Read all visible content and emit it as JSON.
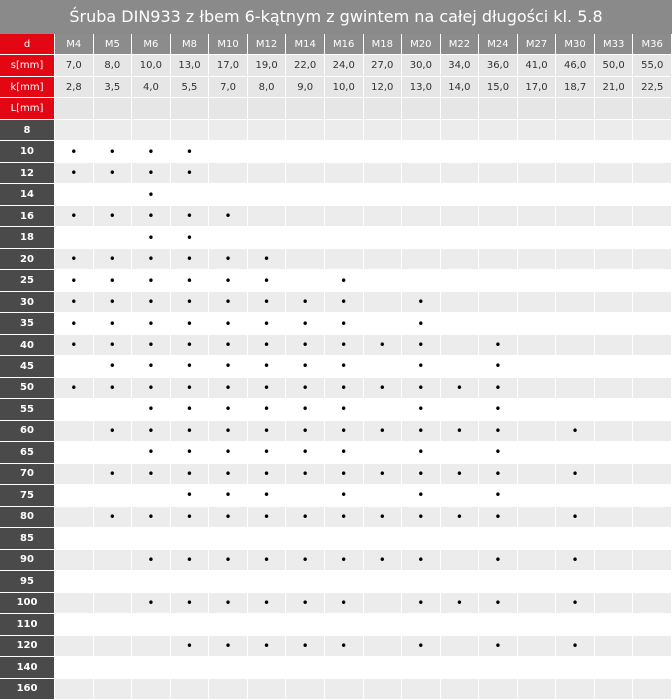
{
  "title": "Śruba DIN933 z łbem 6-kątnym z gwintem na całej długości kl. 5.8",
  "header": {
    "label": "d",
    "columns": [
      "M4",
      "M5",
      "M6",
      "M8",
      "M10",
      "M12",
      "M14",
      "M16",
      "M18",
      "M20",
      "M22",
      "M24",
      "M27",
      "M30",
      "M33",
      "M36"
    ]
  },
  "dimensions": [
    {
      "label": "s[mm]",
      "cells": [
        "7,0",
        "8,0",
        "10,0",
        "13,0",
        "17,0",
        "19,0",
        "22,0",
        "24,0",
        "27,0",
        "30,0",
        "34,0",
        "36,0",
        "41,0",
        "46,0",
        "50,0",
        "55,0"
      ]
    },
    {
      "label": "k[mm]",
      "cells": [
        "2,8",
        "3,5",
        "4,0",
        "5,5",
        "7,0",
        "8,0",
        "9,0",
        "10,0",
        "12,0",
        "13,0",
        "14,0",
        "15,0",
        "17,0",
        "18,7",
        "21,0",
        "22,5"
      ]
    }
  ],
  "length_label": "L[mm]",
  "rows": [
    {
      "label": "8",
      "cells": [
        null,
        null,
        null,
        null,
        null,
        null,
        null,
        null,
        null,
        null,
        null,
        null,
        null,
        null,
        null,
        null
      ]
    },
    {
      "label": "10",
      "cells": [
        "•",
        "•",
        "•",
        "•",
        null,
        null,
        null,
        null,
        null,
        null,
        null,
        null,
        null,
        null,
        null,
        null
      ]
    },
    {
      "label": "12",
      "cells": [
        "•",
        "•",
        "•",
        "•",
        null,
        null,
        null,
        null,
        null,
        null,
        null,
        null,
        null,
        null,
        null,
        null
      ]
    },
    {
      "label": "14",
      "cells": [
        null,
        null,
        "•",
        null,
        null,
        null,
        null,
        null,
        null,
        null,
        null,
        null,
        null,
        null,
        null,
        null
      ]
    },
    {
      "label": "16",
      "cells": [
        "•",
        "•",
        "•",
        "•",
        "•",
        null,
        null,
        null,
        null,
        null,
        null,
        null,
        null,
        null,
        null,
        null
      ]
    },
    {
      "label": "18",
      "cells": [
        null,
        null,
        "•",
        "•",
        null,
        null,
        null,
        null,
        null,
        null,
        null,
        null,
        null,
        null,
        null,
        null
      ]
    },
    {
      "label": "20",
      "cells": [
        "•",
        "•",
        "•",
        "•",
        "•",
        "•",
        null,
        null,
        null,
        null,
        null,
        null,
        null,
        null,
        null,
        null
      ]
    },
    {
      "label": "25",
      "cells": [
        "•",
        "•",
        "•",
        "•",
        "•",
        "•",
        null,
        "•",
        null,
        null,
        null,
        null,
        null,
        null,
        null,
        null
      ]
    },
    {
      "label": "30",
      "cells": [
        "•",
        "•",
        "•",
        "•",
        "•",
        "•",
        "•",
        "•",
        null,
        "•",
        null,
        null,
        null,
        null,
        null,
        null
      ]
    },
    {
      "label": "35",
      "cells": [
        "•",
        "•",
        "•",
        "•",
        "•",
        "•",
        "•",
        "•",
        null,
        "•",
        null,
        null,
        null,
        null,
        null,
        null
      ]
    },
    {
      "label": "40",
      "cells": [
        "•",
        "•",
        "•",
        "•",
        "•",
        "•",
        "•",
        "•",
        "•",
        "•",
        null,
        "•",
        null,
        null,
        null,
        null
      ]
    },
    {
      "label": "45",
      "cells": [
        null,
        "•",
        "•",
        "•",
        "•",
        "•",
        "•",
        "•",
        null,
        "•",
        null,
        "•",
        null,
        null,
        null,
        null
      ]
    },
    {
      "label": "50",
      "cells": [
        "•",
        "•",
        "•",
        "•",
        "•",
        "•",
        "•",
        "•",
        "•",
        "•",
        "•",
        "•",
        null,
        null,
        null,
        null
      ]
    },
    {
      "label": "55",
      "cells": [
        null,
        null,
        "•",
        "•",
        "•",
        "•",
        "•",
        "•",
        null,
        "•",
        null,
        "•",
        null,
        null,
        null,
        null
      ]
    },
    {
      "label": "60",
      "cells": [
        null,
        "•",
        "•",
        "•",
        "•",
        "•",
        "•",
        "•",
        "•",
        "•",
        "•",
        "•",
        null,
        "•",
        null,
        null
      ]
    },
    {
      "label": "65",
      "cells": [
        null,
        null,
        "•",
        "•",
        "•",
        "•",
        "•",
        "•",
        null,
        "•",
        null,
        "•",
        null,
        null,
        null,
        null
      ]
    },
    {
      "label": "70",
      "cells": [
        null,
        "•",
        "•",
        "•",
        "•",
        "•",
        "•",
        "•",
        "•",
        "•",
        "•",
        "•",
        null,
        "•",
        null,
        null
      ]
    },
    {
      "label": "75",
      "cells": [
        null,
        null,
        null,
        "•",
        "•",
        "•",
        null,
        "•",
        null,
        "•",
        null,
        "•",
        null,
        null,
        null,
        null
      ]
    },
    {
      "label": "80",
      "cells": [
        null,
        "•",
        "•",
        "•",
        "•",
        "•",
        "•",
        "•",
        "•",
        "•",
        "•",
        "•",
        null,
        "•",
        null,
        null
      ]
    },
    {
      "label": "85",
      "cells": [
        null,
        null,
        null,
        null,
        null,
        null,
        null,
        null,
        null,
        null,
        null,
        null,
        null,
        null,
        null,
        null
      ]
    },
    {
      "label": "90",
      "cells": [
        null,
        null,
        "•",
        "•",
        "•",
        "•",
        "•",
        "•",
        "•",
        "•",
        null,
        "•",
        null,
        "•",
        null,
        null
      ]
    },
    {
      "label": "95",
      "cells": [
        null,
        null,
        null,
        null,
        null,
        null,
        null,
        null,
        null,
        null,
        null,
        null,
        null,
        null,
        null,
        null
      ]
    },
    {
      "label": "100",
      "cells": [
        null,
        null,
        "•",
        "•",
        "•",
        "•",
        "•",
        "•",
        null,
        "•",
        "•",
        "•",
        null,
        "•",
        null,
        null
      ]
    },
    {
      "label": "110",
      "cells": [
        null,
        null,
        null,
        null,
        null,
        null,
        null,
        null,
        null,
        null,
        null,
        null,
        null,
        null,
        null,
        null
      ]
    },
    {
      "label": "120",
      "cells": [
        null,
        null,
        null,
        "•",
        "•",
        "•",
        "•",
        "•",
        null,
        "•",
        null,
        "•",
        null,
        "•",
        null,
        null
      ]
    },
    {
      "label": "140",
      "cells": [
        null,
        null,
        null,
        null,
        null,
        null,
        null,
        null,
        null,
        null,
        null,
        null,
        null,
        null,
        null,
        null
      ]
    },
    {
      "label": "160",
      "cells": [
        null,
        null,
        null,
        null,
        null,
        null,
        null,
        null,
        null,
        null,
        null,
        null,
        null,
        null,
        null,
        null
      ]
    }
  ]
}
